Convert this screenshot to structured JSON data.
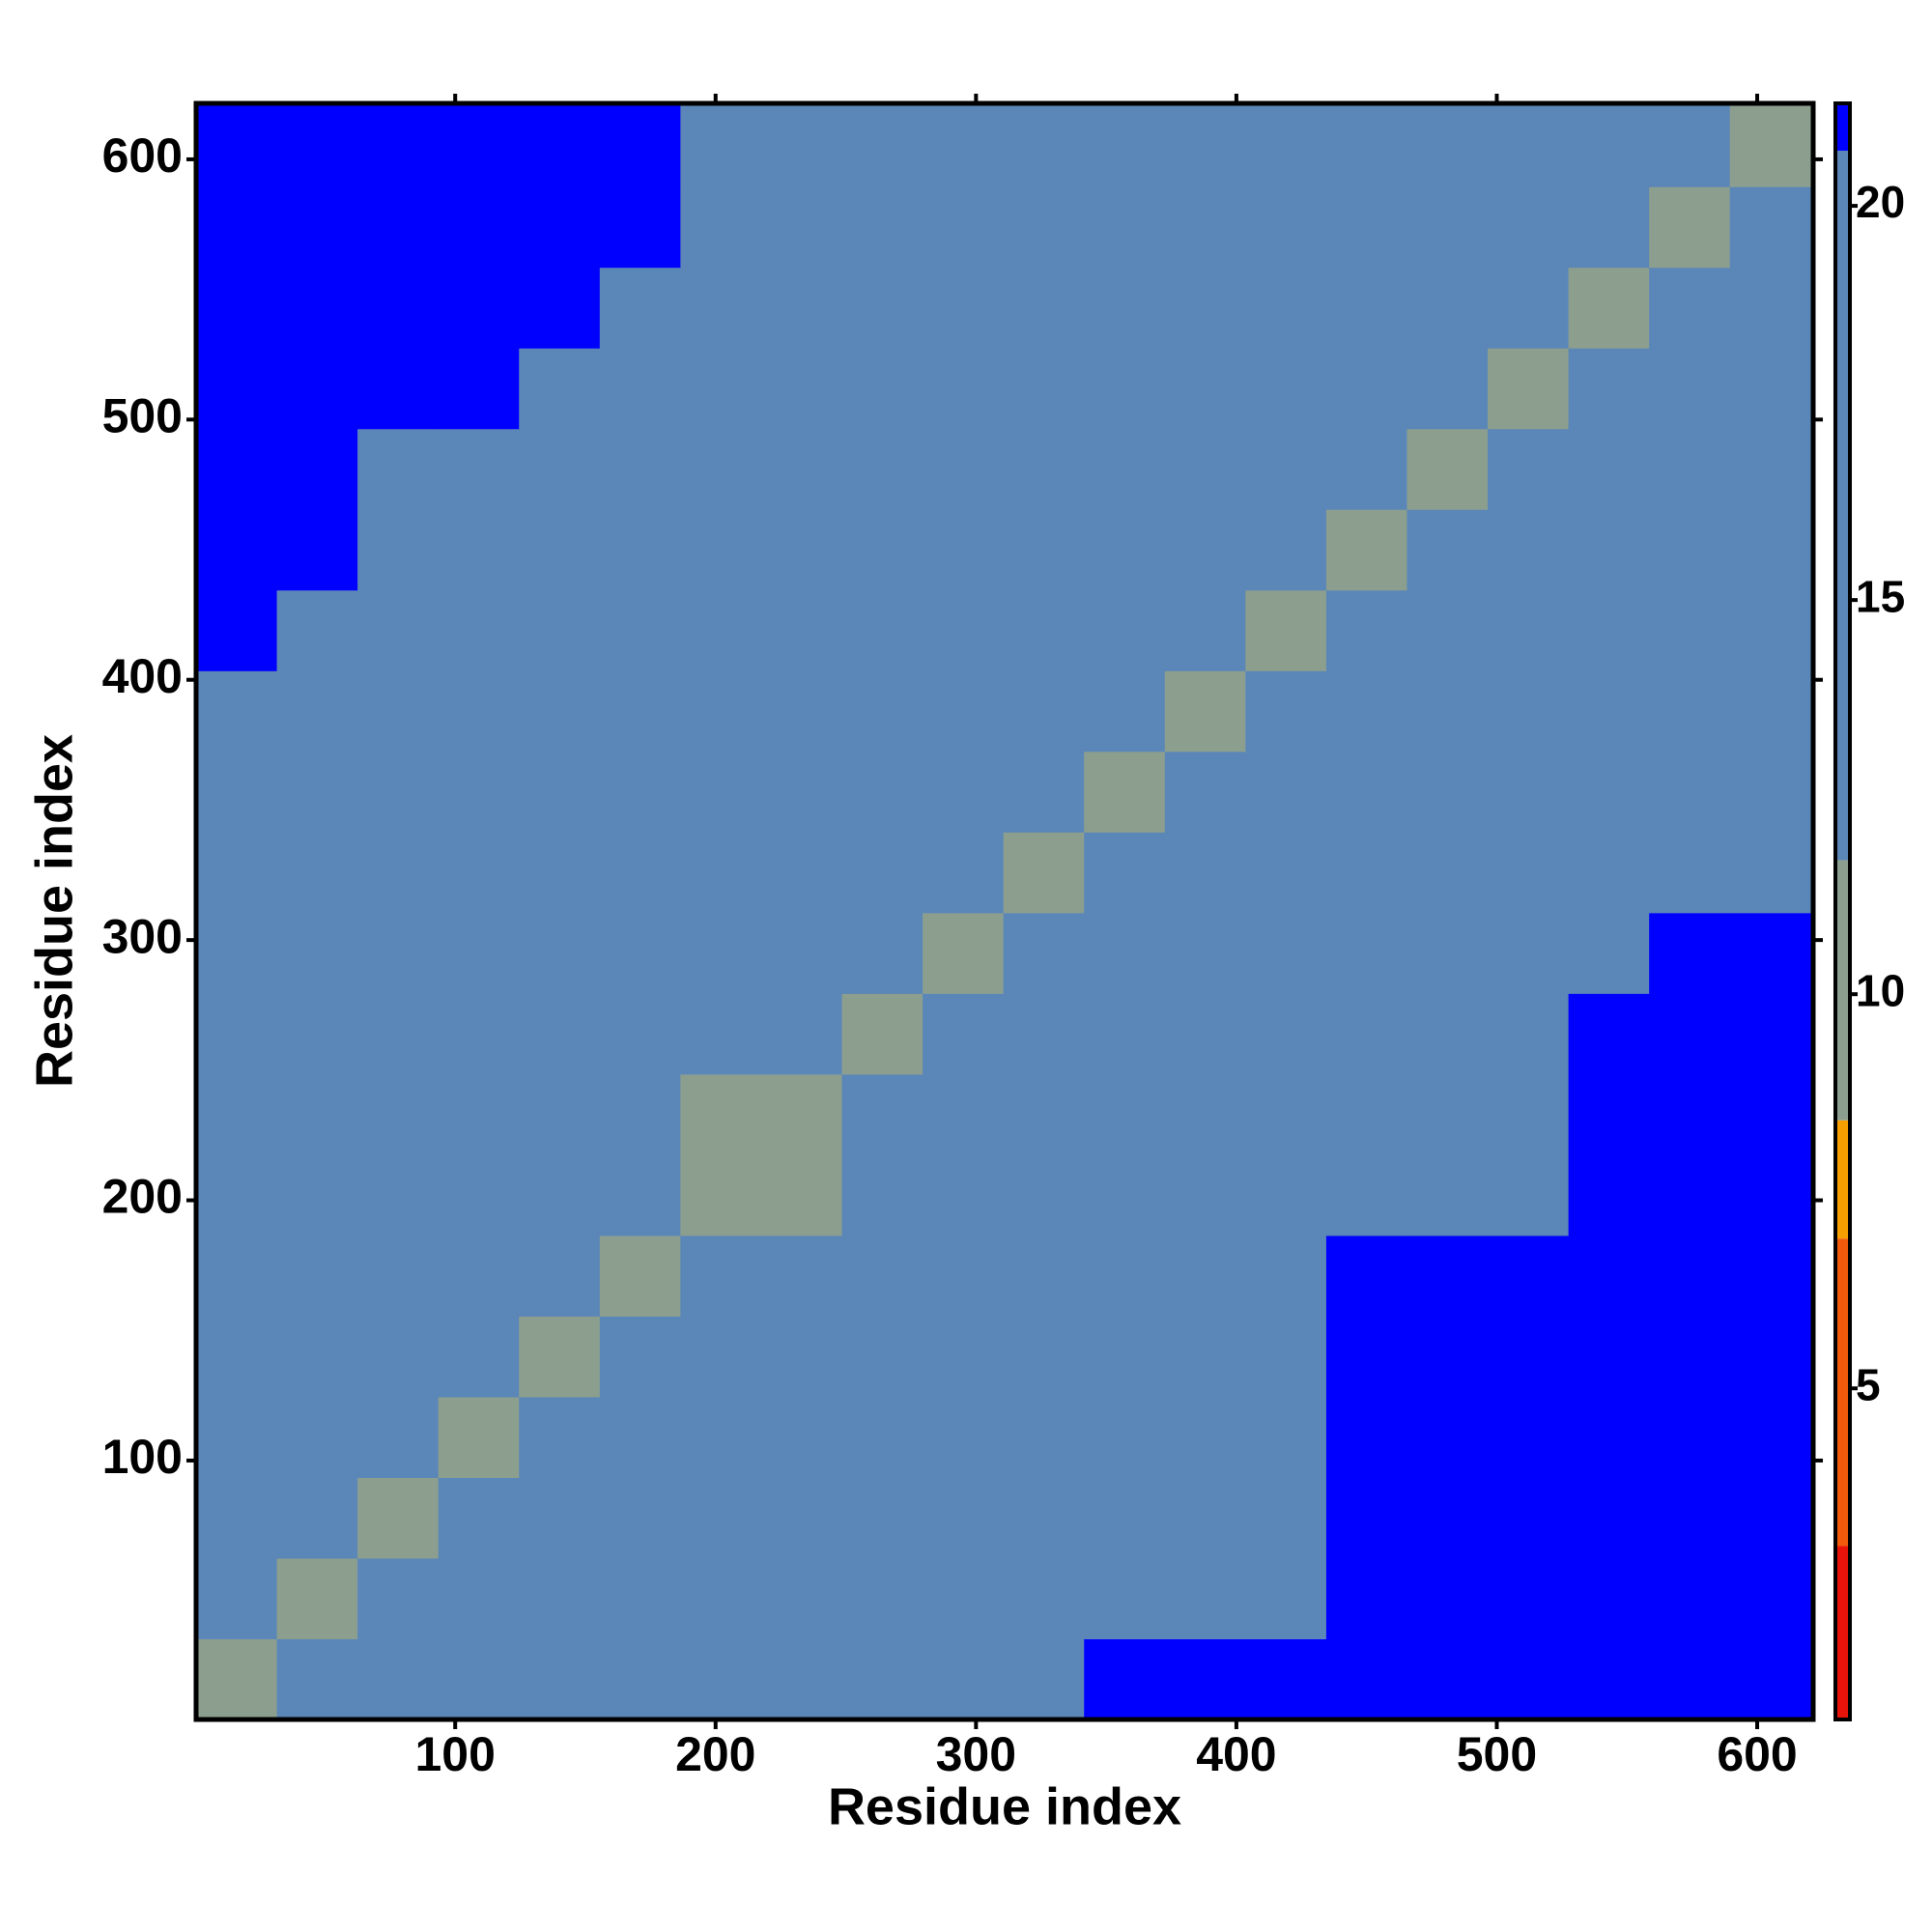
{
  "chart_data": {
    "type": "heatmap",
    "xlabel": "Residue index",
    "ylabel": "Residue index",
    "x": [
      16,
      47,
      78,
      109,
      140,
      171,
      202,
      233,
      264,
      295,
      326,
      357,
      388,
      419,
      450,
      481,
      512,
      543,
      574,
      605
    ],
    "y": [
      16,
      47,
      78,
      109,
      140,
      171,
      202,
      233,
      264,
      295,
      326,
      357,
      388,
      419,
      450,
      481,
      512,
      543,
      574,
      605
    ],
    "z": [
      [
        9,
        13,
        14,
        15,
        15,
        19,
        18,
        16,
        16,
        17,
        20,
        21,
        21,
        21,
        21,
        21,
        21,
        21,
        21,
        21
      ],
      [
        13,
        9,
        13,
        15,
        15,
        17,
        16,
        16,
        16,
        17,
        18,
        20,
        19,
        20,
        21,
        21,
        21,
        21,
        21,
        21
      ],
      [
        14,
        12,
        9,
        12,
        15,
        17,
        16,
        16,
        17,
        17,
        18,
        19,
        18,
        19,
        21,
        21,
        21,
        21,
        21,
        21
      ],
      [
        15,
        15,
        12,
        9,
        12,
        16,
        17,
        17,
        17,
        16,
        18,
        18,
        18,
        19,
        21,
        21,
        21,
        21,
        21,
        21
      ],
      [
        15,
        15,
        14,
        12,
        9,
        14,
        16,
        16,
        17,
        17,
        18,
        19,
        18,
        19,
        21,
        21,
        21,
        21,
        21,
        21
      ],
      [
        17,
        16,
        16,
        15,
        14,
        9,
        13,
        14,
        15,
        15,
        13,
        16,
        17,
        19,
        21,
        21,
        21,
        21,
        21,
        21
      ],
      [
        18,
        17,
        17,
        16,
        16,
        13,
        9,
        11,
        14,
        14,
        15,
        16,
        16,
        18,
        18,
        18,
        19,
        21,
        21,
        21
      ],
      [
        16,
        16,
        16,
        16,
        16,
        14,
        11,
        9,
        12,
        15,
        16,
        16,
        16,
        17,
        18,
        18,
        19,
        21,
        21,
        21
      ],
      [
        18,
        17,
        17,
        16,
        15,
        14,
        13,
        12,
        9,
        13,
        16,
        17,
        17,
        17,
        18,
        17,
        18,
        21,
        21,
        21
      ],
      [
        19,
        18,
        17,
        17,
        16,
        15,
        14,
        14,
        12,
        9,
        13,
        16,
        17,
        17,
        18,
        17,
        17,
        20,
        21,
        21
      ],
      [
        20,
        19,
        18,
        18,
        16,
        14,
        15,
        16,
        15,
        13,
        9,
        13,
        14,
        15,
        16,
        15,
        15,
        16,
        16,
        16
      ],
      [
        20,
        19,
        18,
        18,
        17,
        16,
        16,
        16,
        16,
        16,
        12,
        9,
        12,
        13,
        15,
        15,
        16,
        16,
        16,
        16
      ],
      [
        20,
        19,
        19,
        18,
        17,
        17,
        17,
        17,
        17,
        17,
        14,
        12,
        9,
        12,
        14,
        15,
        15,
        16,
        16,
        17
      ],
      [
        21,
        20,
        19,
        19,
        18,
        18,
        17,
        17,
        17,
        17,
        14,
        13,
        12,
        9,
        12,
        14,
        14,
        15,
        16,
        16
      ],
      [
        21,
        21,
        20,
        19,
        19,
        18,
        18,
        18,
        18,
        18,
        16,
        15,
        14,
        12,
        9,
        12,
        14,
        15,
        15,
        16
      ],
      [
        21,
        21,
        20,
        20,
        20,
        19,
        19,
        18,
        18,
        18,
        16,
        15,
        15,
        14,
        12,
        9,
        12,
        14,
        15,
        16
      ],
      [
        21,
        21,
        21,
        21,
        20,
        20,
        19,
        18,
        18,
        18,
        15,
        16,
        15,
        14,
        14,
        12,
        9,
        12,
        15,
        16
      ],
      [
        21,
        21,
        21,
        21,
        21,
        20,
        19,
        19,
        19,
        19,
        17,
        16,
        16,
        16,
        15,
        14,
        12,
        9,
        12,
        14
      ],
      [
        21,
        21,
        21,
        21,
        21,
        21,
        20,
        19,
        19,
        20,
        15,
        16,
        16,
        16,
        16,
        15,
        15,
        12,
        9,
        12
      ],
      [
        21,
        21,
        21,
        21,
        21,
        21,
        20,
        20,
        20,
        20,
        16,
        15,
        16,
        16,
        16,
        16,
        16,
        14,
        12,
        9
      ]
    ],
    "xlim": [
      0.5,
      621.5
    ],
    "ylim": [
      0.5,
      621.5
    ],
    "xticks": [
      100,
      200,
      300,
      400,
      500,
      600
    ],
    "yticks": [
      100,
      200,
      300,
      400,
      500,
      600
    ],
    "colorbar": {
      "lim": [
        0.8,
        21.3
      ],
      "ticks": [
        5,
        10,
        15,
        20
      ],
      "bands": [
        {
          "from": 0.8,
          "to": 3,
          "color": "#e8140a"
        },
        {
          "from": 3,
          "to": 6.9,
          "color": "#f05a0a"
        },
        {
          "from": 6.9,
          "to": 8.4,
          "color": "#f5a000"
        },
        {
          "from": 8.4,
          "to": 11.7,
          "color": "#8c9f8e"
        },
        {
          "from": 11.7,
          "to": 20.7,
          "color": "#5b86b8"
        },
        {
          "from": 20.7,
          "to": 21.3,
          "color": "#0000ff"
        }
      ]
    }
  }
}
